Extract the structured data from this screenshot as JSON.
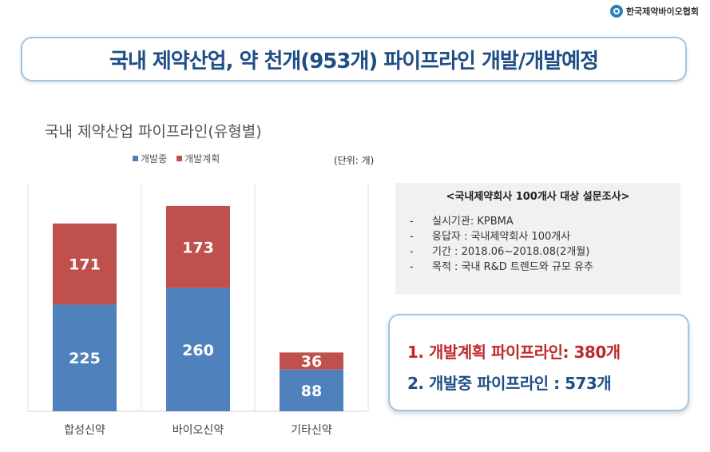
{
  "logo": {
    "text": "한국제약바이오협회"
  },
  "title": "국내 제약산업, 약 천개(953개) 파이프라인 개발/개발예정",
  "unit": "(단위: 개)",
  "chart_data": {
    "type": "bar",
    "stacked": true,
    "title": "국내 제약산업 파이프라인(유형별)",
    "categories": [
      "합성신약",
      "바이오신약",
      "기타신약"
    ],
    "series": [
      {
        "name": "개발중",
        "values": [
          225,
          260,
          88
        ],
        "color": "#4f81bd"
      },
      {
        "name": "개발계획",
        "values": [
          171,
          173,
          36
        ],
        "color": "#c0504d"
      }
    ],
    "ylim": [
      0,
      480
    ],
    "grid": false,
    "legend_position": "top"
  },
  "survey": {
    "title": "<국내제약회사 100개사 대상 설문조사>",
    "items": [
      "실시기관: KPBMA",
      "응답자 : 국내제약회사 100개사",
      "기간 : 2018.06~2018.08(2개월)",
      "목적 : 국내 R&D 트렌드와 규모 유추"
    ]
  },
  "summary": {
    "line1": "1. 개발계획 파이프라인: 380개",
    "line2": "2. 개발중 파이프라인 : 573개"
  }
}
